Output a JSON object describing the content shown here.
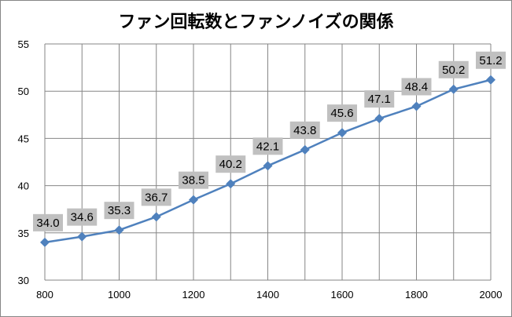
{
  "chart_data": {
    "type": "line",
    "title": "ファン回転数とファンノイズの関係",
    "xlabel": "",
    "ylabel": "",
    "x": [
      800,
      900,
      1000,
      1100,
      1200,
      1300,
      1400,
      1500,
      1600,
      1700,
      1800,
      1900,
      2000
    ],
    "series": [
      {
        "name": "ファンノイズ",
        "values": [
          34.0,
          34.6,
          35.3,
          36.7,
          38.5,
          40.2,
          42.1,
          43.8,
          45.6,
          47.1,
          48.4,
          50.2,
          51.2
        ],
        "labels": [
          "34.0",
          "34.6",
          "35.3",
          "36.7",
          "38.5",
          "40.2",
          "42.1",
          "43.8",
          "45.6",
          "47.1",
          "48.4",
          "50.2",
          "51.2"
        ],
        "color": "#4F81BD"
      }
    ],
    "xlim": [
      800,
      2000
    ],
    "ylim": [
      30,
      55
    ],
    "xticks": [
      800,
      1000,
      1200,
      1400,
      1600,
      1800,
      2000
    ],
    "xtick_labels": [
      "800",
      "1000",
      "1200",
      "1400",
      "1600",
      "1800",
      "2000"
    ],
    "yticks": [
      30,
      35,
      40,
      45,
      50,
      55
    ],
    "ytick_labels": [
      "30",
      "35",
      "40",
      "45",
      "50",
      "55"
    ],
    "grid": true,
    "legend": "none",
    "label_background": "#C0C0C0"
  }
}
